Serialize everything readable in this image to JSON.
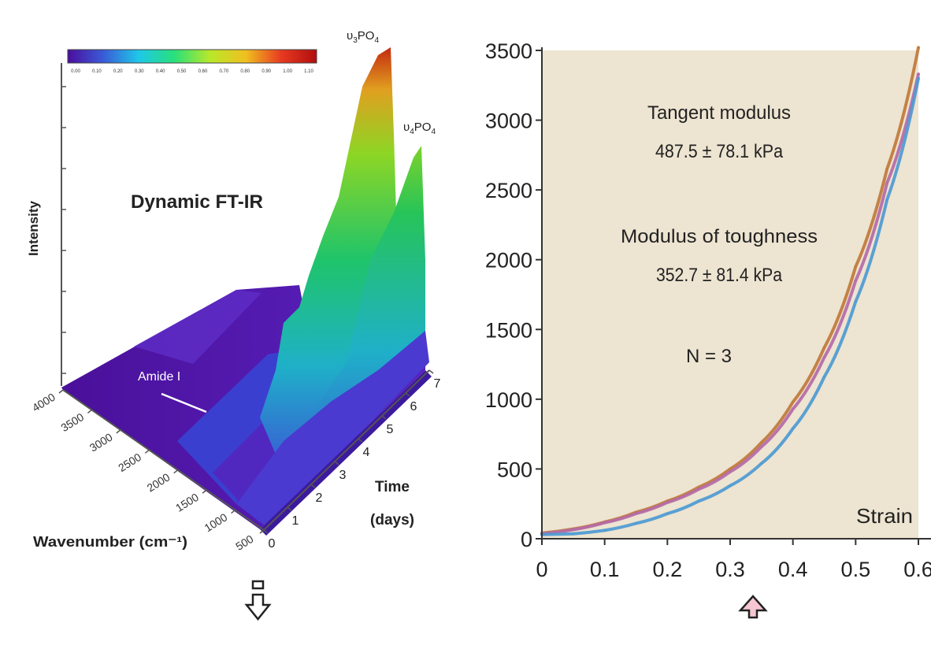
{
  "chart_data": [
    {
      "type": "surface3d",
      "title": "Dynamic FT-IR",
      "zlabel": "Intensity",
      "xlabel": "Wavenumber (cm⁻¹)",
      "ylabel_line1": "Time",
      "ylabel_line2": "(days)",
      "x_ticks": [
        "4000",
        "3500",
        "3000",
        "2500",
        "2000",
        "1500",
        "1000",
        "500"
      ],
      "y_ticks": [
        "0",
        "1",
        "2",
        "3",
        "4",
        "5",
        "6",
        "7"
      ],
      "annotations": {
        "amide": "Amide I",
        "peak1_prefix": "υ",
        "peak1_sub": "3",
        "peak1_mid": "PO",
        "peak1_sub2": "4",
        "peak2_prefix": "υ",
        "peak2_sub": "4",
        "peak2_mid": "PO",
        "peak2_sub2": "4"
      },
      "colorbar": {
        "colors": [
          "#4b0e9e",
          "#3a5bd8",
          "#1ec8e8",
          "#29e07a",
          "#b8e82a",
          "#f0c020",
          "#e83a20",
          "#b00e0e"
        ],
        "ticks": [
          "0.00",
          "0.10",
          "0.20",
          "0.30",
          "0.40",
          "0.50",
          "0.60",
          "0.70",
          "0.80",
          "0.90",
          "1.00",
          "1.10"
        ]
      }
    },
    {
      "type": "line",
      "xlabel": "Strain",
      "xlim": [
        0,
        0.6
      ],
      "ylim": [
        0,
        3500
      ],
      "x_ticks": [
        0,
        0.1,
        0.2,
        0.3,
        0.4,
        0.5,
        0.6
      ],
      "x_tick_labels": [
        "0",
        "0.1",
        "0.2",
        "0.3",
        "0.4",
        "0.5",
        "0.6"
      ],
      "y_ticks": [
        0,
        500,
        1000,
        1500,
        2000,
        2500,
        3000,
        3500
      ],
      "y_tick_labels": [
        "0",
        "500",
        "1000",
        "1500",
        "2000",
        "2500",
        "3000",
        "3500"
      ],
      "annotations": {
        "tangent_label": "Tangent modulus",
        "tangent_value": "487.5 ± 78.1 kPa",
        "toughness_label": "Modulus of toughness",
        "toughness_value": "352.7 ± 81.4 kPa",
        "n_label": "N = 3"
      },
      "plot_background": "#ede4d1",
      "series": [
        {
          "color": "#c07a3a",
          "x": [
            0,
            0.05,
            0.1,
            0.15,
            0.2,
            0.25,
            0.3,
            0.35,
            0.4,
            0.45,
            0.5,
            0.55,
            0.6
          ],
          "y": [
            40,
            70,
            120,
            190,
            270,
            370,
            500,
            690,
            980,
            1370,
            1950,
            2650,
            3520
          ]
        },
        {
          "color": "#b46aa8",
          "x": [
            0,
            0.05,
            0.1,
            0.15,
            0.2,
            0.25,
            0.3,
            0.35,
            0.4,
            0.45,
            0.5,
            0.55,
            0.6
          ],
          "y": [
            35,
            65,
            115,
            180,
            260,
            355,
            480,
            660,
            930,
            1300,
            1850,
            2550,
            3330
          ]
        },
        {
          "color": "#4d9ad2",
          "x": [
            0,
            0.05,
            0.1,
            0.15,
            0.2,
            0.25,
            0.3,
            0.35,
            0.4,
            0.45,
            0.5,
            0.55,
            0.6
          ],
          "y": [
            30,
            35,
            60,
            110,
            180,
            270,
            380,
            540,
            790,
            1160,
            1700,
            2430,
            3300
          ]
        }
      ]
    }
  ]
}
